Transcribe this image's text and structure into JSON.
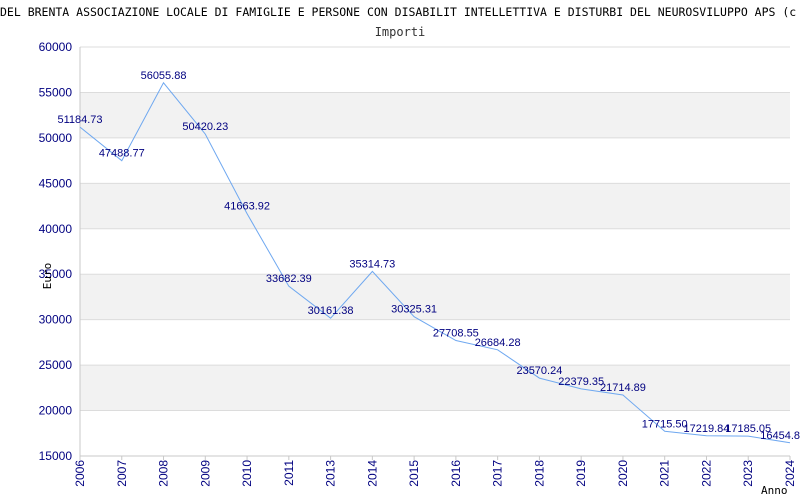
{
  "chart_data": {
    "type": "line",
    "title": "DEL BRENTA ASSOCIAZIONE LOCALE DI FAMIGLIE E PERSONE CON DISABILIT INTELLETTIVA E DISTURBI DEL NEUROSVILUPPO APS (c",
    "subtitle": "Importi",
    "xlabel": "Anno",
    "ylabel": "Euro",
    "ylim": [
      15000,
      60000
    ],
    "yticks": [
      15000,
      20000,
      25000,
      30000,
      35000,
      40000,
      45000,
      50000,
      55000,
      60000
    ],
    "grid": true,
    "line_color": "#6fa8f0",
    "x": [
      "2006",
      "2007",
      "2008",
      "2009",
      "2010",
      "2011",
      "2013",
      "2014",
      "2015",
      "2016",
      "2017",
      "2018",
      "2019",
      "2020",
      "2021",
      "2022",
      "2023",
      "2024"
    ],
    "values": [
      51184.73,
      47488.77,
      56055.88,
      50420.23,
      41663.92,
      33682.39,
      30161.38,
      35314.73,
      30325.31,
      27708.55,
      26684.28,
      23570.24,
      22379.35,
      21714.89,
      17715.5,
      17219.84,
      17185.05,
      16454.8
    ],
    "value_labels": [
      "51184.73",
      "47488.77",
      "56055.88",
      "50420.23",
      "41663.92",
      "33682.39",
      "30161.38",
      "35314.73",
      "30325.31",
      "27708.55",
      "26684.28",
      "23570.24",
      "22379.35",
      "21714.89",
      "17715.50",
      "17219.84",
      "17185.05",
      "16454.8"
    ]
  }
}
